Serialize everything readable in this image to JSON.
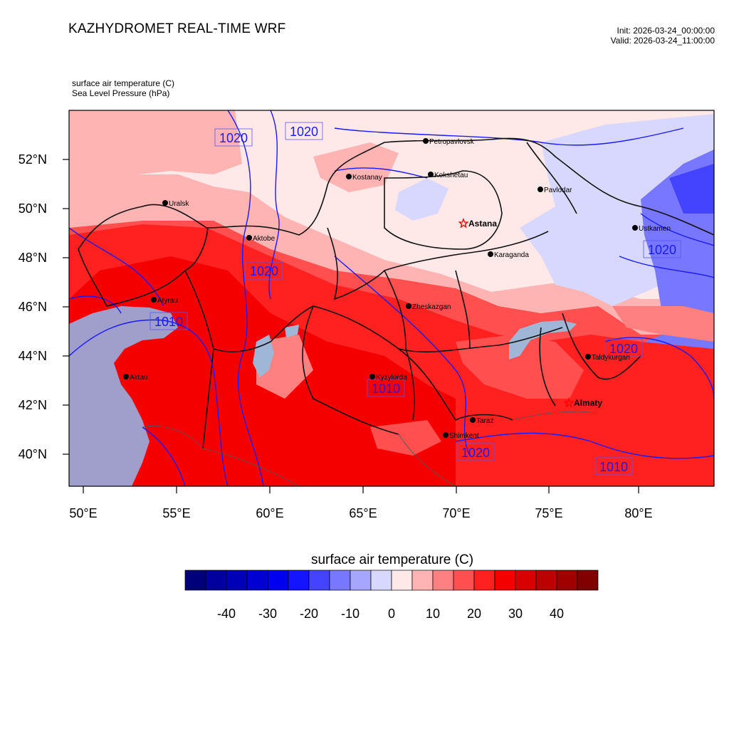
{
  "header": {
    "title": "KAZHYDROMET REAL-TIME WRF",
    "init": "Init: 2026-03-24_00:00:00",
    "valid": "Valid: 2026-03-24_11:00:00"
  },
  "fields": {
    "primary": "surface air temperature   (C)",
    "secondary": "Sea Level Pressure   (hPa)"
  },
  "map": {
    "lat_ticks": [
      "52°N",
      "50°N",
      "48°N",
      "46°N",
      "44°N",
      "42°N",
      "40°N"
    ],
    "lon_ticks": [
      "50°E",
      "55°E",
      "60°E",
      "65°E",
      "70°E",
      "75°E",
      "80°E"
    ],
    "cities": [
      {
        "name": "Petropavlovsk",
        "marker": "dot"
      },
      {
        "name": "Kostanay",
        "marker": "dot"
      },
      {
        "name": "Kokshetau",
        "marker": "dot"
      },
      {
        "name": "Pavlodar",
        "marker": "dot"
      },
      {
        "name": "Uralsk",
        "marker": "dot"
      },
      {
        "name": "Aktobe",
        "marker": "dot"
      },
      {
        "name": "Astana",
        "marker": "star"
      },
      {
        "name": "Ustkamen",
        "marker": "dot"
      },
      {
        "name": "Karaganda",
        "marker": "dot"
      },
      {
        "name": "Atyrau",
        "marker": "dot"
      },
      {
        "name": "Zheskazgan",
        "marker": "dot"
      },
      {
        "name": "Taldykurgan",
        "marker": "dot"
      },
      {
        "name": "Aktau",
        "marker": "dot"
      },
      {
        "name": "Kyzylorda",
        "marker": "dot"
      },
      {
        "name": "Almaty",
        "marker": "star"
      },
      {
        "name": "Taraz",
        "marker": "dot"
      },
      {
        "name": "Shimkent",
        "marker": "dot"
      }
    ],
    "isobar_labels": [
      "1020",
      "1020",
      "1020",
      "1010",
      "1020",
      "1020",
      "1010",
      "1020",
      "1010"
    ]
  },
  "colorbar": {
    "title": "surface air temperature  (C)",
    "colors": [
      "#00007a",
      "#00009e",
      "#0000b8",
      "#0000d2",
      "#0000ee",
      "#1414ff",
      "#4444ff",
      "#7777ff",
      "#a6a6ff",
      "#d8d8ff",
      "#ffe8e8",
      "#ffb4b4",
      "#ff8080",
      "#ff4f4f",
      "#ff2020",
      "#f40000",
      "#d80000",
      "#bd0000",
      "#a00000",
      "#800000"
    ],
    "labels": [
      "-40",
      "-30",
      "-20",
      "-10",
      "0",
      "10",
      "20",
      "30",
      "40"
    ]
  }
}
